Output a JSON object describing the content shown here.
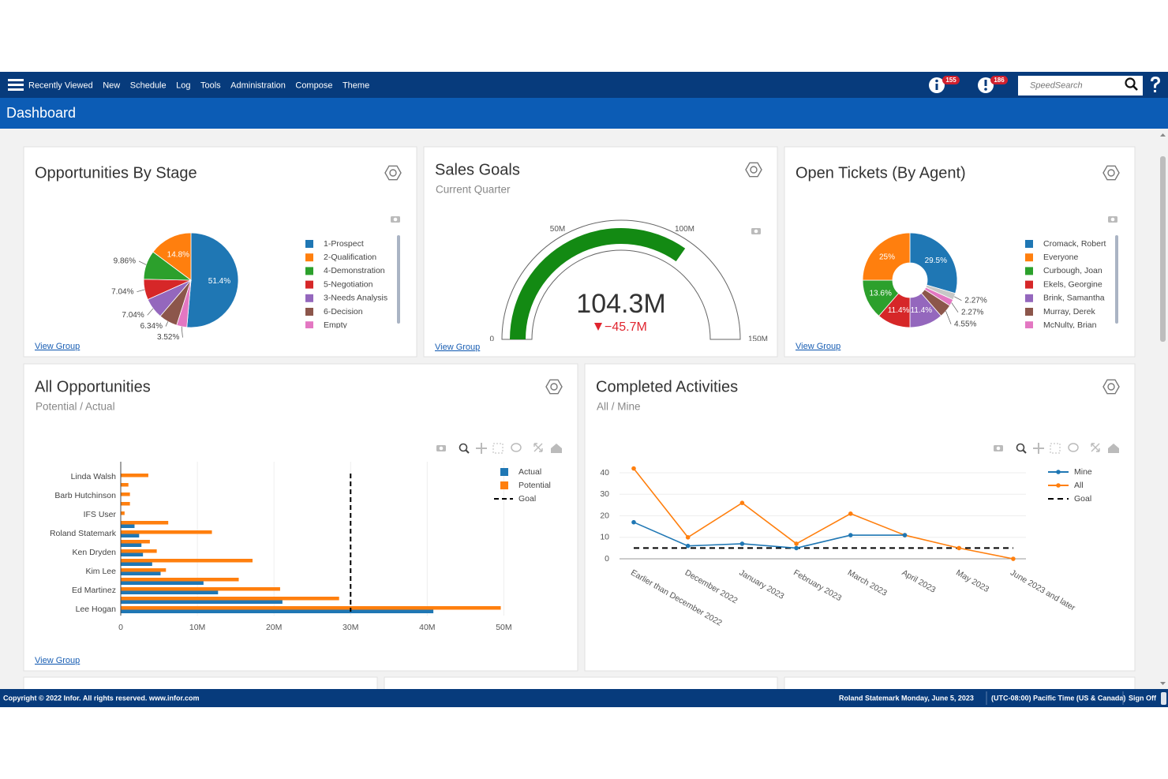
{
  "nav": {
    "items": [
      "Recently Viewed",
      "New",
      "Schedule",
      "Log",
      "Tools",
      "Administration",
      "Compose",
      "Theme"
    ],
    "badges": [
      "155",
      "186"
    ],
    "search_placeholder": "SpeedSearch"
  },
  "header": {
    "title": "Dashboard"
  },
  "chart_data": [
    {
      "type": "pie",
      "title": "Opportunities By Stage",
      "categories": [
        "1-Prospect",
        "2-Qualification",
        "4-Demonstration",
        "5-Negotiation",
        "3-Needs Analysis",
        "6-Decision",
        "Empty"
      ],
      "values": [
        51.4,
        14.8,
        9.86,
        7.04,
        7.04,
        6.34,
        3.52
      ],
      "value_labels": [
        "51.4%",
        "14.8%",
        "9.86%",
        "7.04%",
        "7.04%",
        "6.34%",
        "3.52%"
      ],
      "colors": [
        "#1f77b4",
        "#ff7f0e",
        "#2ca02c",
        "#d62728",
        "#9467bd",
        "#8c564b",
        "#e377c2"
      ],
      "link": "View Group"
    },
    {
      "type": "gauge",
      "title": "Sales Goals",
      "subtitle": "Current Quarter",
      "value": 104300000,
      "value_label": "104.3M",
      "delta": -45700000,
      "delta_label": "−45.7M",
      "color": "#138a13",
      "ylim": [
        0,
        150000000
      ],
      "yticks": [
        0,
        {
          "value": 50000000,
          "label": "50M"
        },
        {
          "value": 100000000,
          "label": "100M"
        },
        {
          "value": 150000000,
          "label": "150M"
        }
      ],
      "link": "View Group"
    },
    {
      "type": "donut",
      "title": "Open Tickets (By Agent)",
      "categories": [
        "Cromack, Robert",
        "Everyone",
        "Curbough, Joan",
        "Ekels, Georgine",
        "Brink, Samantha",
        "Murray, Derek",
        "McNulty, Brian",
        null
      ],
      "values": [
        29.5,
        25,
        13.6,
        11.4,
        11.4,
        4.55,
        2.27,
        2.27
      ],
      "value_labels": [
        "29.5%",
        "25%",
        "13.6%",
        "11.4%",
        "11.4%",
        "4.55%",
        "2.27%",
        "2.27%"
      ],
      "colors": [
        "#1f77b4",
        "#ff7f0e",
        "#2ca02c",
        "#d62728",
        "#9467bd",
        "#8c564b",
        "#e377c2",
        "#c7c7c7"
      ],
      "link": "View Group"
    },
    {
      "type": "bar",
      "orientation": "horizontal",
      "title": "All Opportunities",
      "subtitle": "Potential / Actual",
      "categories": [
        "Lee Hogan",
        null,
        "Ed Martinez",
        null,
        "Kim Lee",
        null,
        "Ken Dryden",
        null,
        "Roland Statemark",
        null,
        "IFS User",
        null,
        "Barb Hutchinson",
        null,
        "Linda Walsh"
      ],
      "series": [
        {
          "name": "Actual",
          "color": "#1f77b4",
          "values": [
            40800000,
            21100000,
            12700000,
            10800000,
            5200000,
            4100000,
            2900000,
            2700000,
            2400000,
            1800000,
            0,
            0,
            0,
            0,
            0
          ]
        },
        {
          "name": "Potential",
          "color": "#ff7f0e",
          "values": [
            49600000,
            28500000,
            20800000,
            15400000,
            5900000,
            17200000,
            4700000,
            3800000,
            11900000,
            6200000,
            500000,
            1200000,
            1200000,
            1000000,
            3600000
          ]
        }
      ],
      "goal": {
        "name": "Goal",
        "value": 30000000,
        "color": "#000000"
      },
      "xlim": [
        0,
        51500000
      ],
      "xticks": [
        0,
        {
          "value": 10000000,
          "label": "10M"
        },
        {
          "value": 20000000,
          "label": "20M"
        },
        {
          "value": 30000000,
          "label": "30M"
        },
        {
          "value": 40000000,
          "label": "40M"
        },
        {
          "value": 50000000,
          "label": "50M"
        }
      ],
      "grid": true,
      "link": "View Group"
    },
    {
      "type": "line",
      "title": "Completed Activities",
      "subtitle": "All / Mine",
      "categories": [
        "Earlier than December 2022",
        "December 2022",
        "January 2023",
        "February 2023",
        "March 2023",
        "April 2023",
        "May 2023",
        "June 2023 and later"
      ],
      "series": [
        {
          "name": "Mine",
          "color": "#1f77b4",
          "values": [
            17,
            6,
            7,
            5,
            11,
            11,
            null,
            null
          ]
        },
        {
          "name": "All",
          "color": "#ff7f0e",
          "values": [
            42,
            10,
            26,
            7,
            21,
            11,
            5,
            0
          ]
        },
        {
          "name": "Goal",
          "color": "#000000",
          "dash": true,
          "values": [
            5,
            5,
            5,
            5,
            5,
            5,
            5,
            5
          ]
        }
      ],
      "ylim": [
        -3,
        45
      ],
      "yticks": [
        0,
        10,
        20,
        30,
        40
      ],
      "grid": true
    }
  ],
  "footer": {
    "copyright": "Copyright © 2022 Infor. All rights reserved. www.infor.com",
    "user": "Roland Statemark",
    "date": "Monday, June 5, 2023",
    "timezone": "(UTC-08:00) Pacific Time (US & Canada)",
    "sign_off": "Sign Off"
  }
}
